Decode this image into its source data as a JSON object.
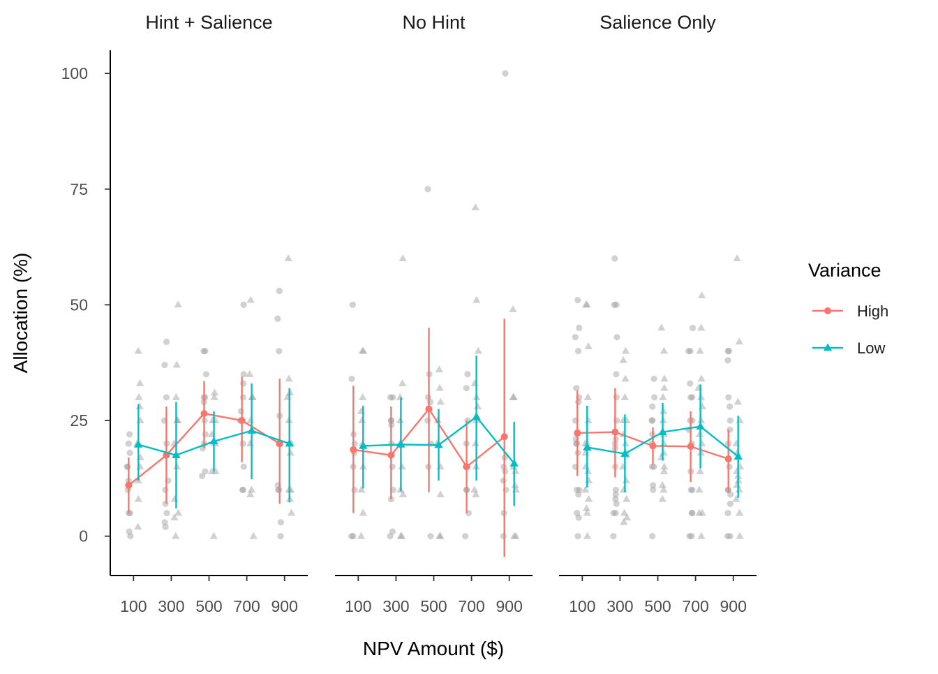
{
  "chart_data": {
    "type": "line",
    "xlabel": "NPV Amount ($)",
    "ylabel": "Allocation (%)",
    "x_ticks": [
      100,
      300,
      500,
      700,
      900
    ],
    "ylim": [
      -8.5,
      105
    ],
    "y_ticks": [
      0,
      25,
      50,
      75,
      100
    ],
    "grid": false,
    "legend": {
      "title": "Variance",
      "position": "right",
      "entries": [
        {
          "name": "High",
          "color": "#F8766D",
          "shape": "circle"
        },
        {
          "name": "Low",
          "color": "#00BFC4",
          "shape": "triangle"
        }
      ]
    },
    "raw_points_color": "#9a9a9a",
    "panels": [
      {
        "title": "Hint + Salience",
        "series": [
          {
            "name": "High",
            "x": [
              100,
              300,
              500,
              700,
              900
            ],
            "y": [
              11,
              17.5,
              26.5,
              25,
              20
            ],
            "ymin": [
              5,
              7,
              19,
              16,
              7
            ],
            "ymax": [
              17,
              28,
              33.5,
              34.5,
              34
            ],
            "raw": [
              [
                0,
                1,
                5,
                5,
                10,
                12,
                15,
                15,
                18,
                20,
                22
              ],
              [
                2,
                3,
                5,
                7,
                10,
                12,
                20,
                25,
                30,
                37,
                42
              ],
              [
                13,
                14,
                19,
                20,
                22,
                25,
                29,
                30,
                30,
                35,
                40,
                40
              ],
              [
                10,
                10,
                15,
                20,
                25,
                25,
                27,
                30,
                33,
                35,
                50
              ],
              [
                0,
                3,
                10,
                10,
                11,
                20,
                26,
                40,
                47,
                53
              ]
            ]
          },
          {
            "name": "Low",
            "x": [
              100,
              300,
              500,
              700,
              900
            ],
            "y": [
              19.8,
              17.5,
              20.5,
              22.8,
              20
            ],
            "ymin": [
              12,
              6,
              14,
              12.3,
              7.3
            ],
            "ymax": [
              28.5,
              29,
              27,
              33,
              32
            ],
            "raw": [
              [
                2,
                8,
                12,
                15,
                17,
                20,
                25,
                28,
                30,
                33,
                40
              ],
              [
                0,
                4,
                5,
                8,
                15,
                20,
                25,
                25,
                30,
                37,
                50
              ],
              [
                0,
                14,
                14,
                20,
                22,
                25,
                25,
                30,
                31
              ],
              [
                0,
                9,
                10,
                20,
                25,
                30,
                30,
                35,
                51
              ],
              [
                5,
                8,
                10,
                10,
                18,
                20,
                25,
                30,
                31,
                34,
                60
              ]
            ]
          }
        ]
      },
      {
        "title": "No Hint",
        "series": [
          {
            "name": "High",
            "x": [
              100,
              300,
              500,
              700,
              900
            ],
            "y": [
              18.7,
              17.5,
              27.5,
              15,
              21.5
            ],
            "ymin": [
              5,
              8,
              9.5,
              5,
              -4.5
            ],
            "ymax": [
              32.5,
              28,
              45,
              25,
              47
            ],
            "raw": [
              [
                0,
                0,
                10,
                15,
                18,
                20,
                22,
                34,
                50
              ],
              [
                0,
                1,
                8,
                10,
                15,
                20,
                24,
                25,
                25,
                30,
                30
              ],
              [
                0,
                15,
                20,
                25,
                29,
                30,
                35,
                75
              ],
              [
                0,
                5,
                10,
                10,
                15,
                20,
                25,
                32,
                35
              ],
              [
                0,
                5,
                10,
                12,
                14,
                15,
                17,
                100
              ]
            ]
          },
          {
            "name": "Low",
            "x": [
              100,
              300,
              500,
              700,
              900
            ],
            "y": [
              19.5,
              19.8,
              19.7,
              25.8,
              15.7
            ],
            "ymin": [
              10.3,
              9.7,
              12,
              12,
              6.5
            ],
            "ymax": [
              28.2,
              30,
              27.5,
              39,
              24.7
            ],
            "raw": [
              [
                0,
                5,
                10,
                15,
                20,
                25,
                27,
                30,
                40,
                40
              ],
              [
                0,
                0,
                9,
                10,
                15,
                20,
                25,
                30,
                33,
                60
              ],
              [
                0,
                0,
                9,
                15,
                20,
                25,
                29,
                32,
                36
              ],
              [
                9,
                10,
                15,
                20,
                25,
                28,
                30,
                33,
                40,
                51,
                71
              ],
              [
                0,
                0,
                10,
                11,
                14,
                15,
                30,
                30,
                49
              ]
            ]
          }
        ]
      },
      {
        "title": "Salience Only",
        "series": [
          {
            "name": "High",
            "x": [
              100,
              300,
              500,
              700,
              900
            ],
            "y": [
              22.3,
              22.5,
              19.5,
              19.4,
              16.7
            ],
            "ymin": [
              13,
              12.7,
              15.5,
              11.7,
              9.5
            ],
            "ymax": [
              31.5,
              32,
              23.5,
              27,
              23
            ],
            "raw": [
              [
                0,
                4,
                5,
                9,
                10,
                10,
                15,
                18,
                20,
                20,
                21,
                25,
                29,
                30,
                32,
                40,
                43,
                45,
                51
              ],
              [
                0,
                5,
                5,
                7,
                8,
                9,
                10,
                15,
                19,
                20,
                21,
                25,
                30,
                35,
                43,
                50,
                50,
                60
              ],
              [
                0,
                10,
                11,
                15,
                15,
                20,
                22,
                25,
                25,
                28,
                30,
                34
              ],
              [
                0,
                0,
                5,
                5,
                10,
                10,
                14,
                20,
                23,
                25,
                25,
                30,
                30,
                33,
                40,
                40,
                45
              ],
              [
                0,
                0,
                5,
                7,
                9,
                10,
                10,
                15,
                20,
                23,
                25,
                28,
                30,
                38,
                40,
                40
              ]
            ]
          },
          {
            "name": "Low",
            "x": [
              100,
              300,
              500,
              700,
              900
            ],
            "y": [
              19.2,
              17.8,
              22.5,
              23.7,
              17.2
            ],
            "ymin": [
              10.5,
              9.5,
              16.3,
              14.7,
              8.3
            ],
            "ymax": [
              28.2,
              26.3,
              28.8,
              32.8,
              26
            ],
            "raw": [
              [
                0,
                5,
                6,
                8,
                10,
                12,
                14,
                15,
                18,
                19,
                20,
                20,
                25,
                30,
                41,
                50,
                50
              ],
              [
                3,
                4,
                5,
                8,
                10,
                12,
                15,
                18,
                20,
                22,
                25,
                25,
                30,
                34,
                38,
                40
              ],
              [
                8,
                10,
                11,
                14,
                15,
                17,
                18,
                20,
                22,
                25,
                27,
                30,
                32,
                34,
                40,
                45
              ],
              [
                0,
                5,
                5,
                10,
                14,
                18,
                20,
                22,
                25,
                28,
                30,
                32,
                34,
                40,
                45,
                52
              ],
              [
                0,
                5,
                8,
                10,
                11,
                12,
                13,
                14,
                15,
                18,
                20,
                25,
                29,
                42,
                60
              ]
            ]
          }
        ]
      }
    ]
  }
}
